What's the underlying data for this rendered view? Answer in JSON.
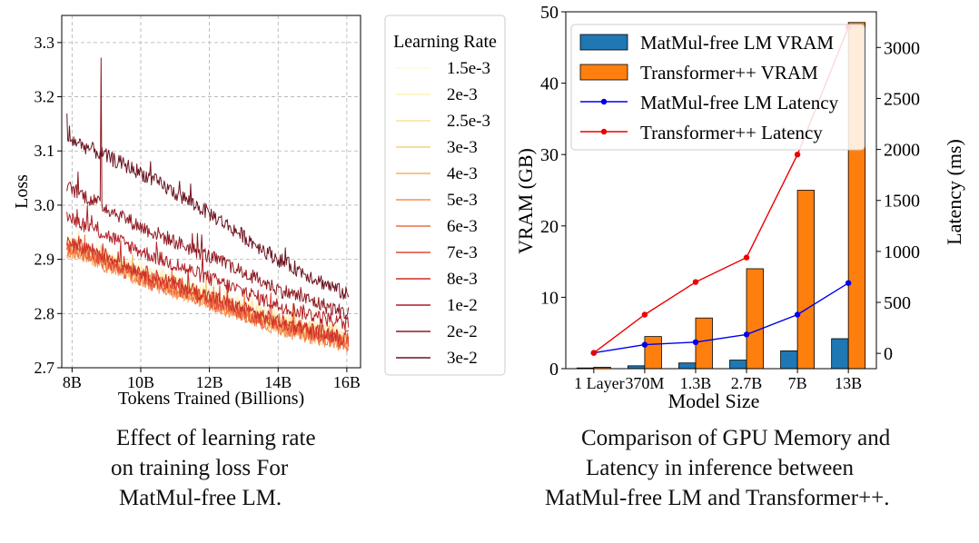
{
  "chart_data": [
    {
      "type": "line",
      "title": "",
      "xlabel": "Tokens Trained (Billions)",
      "ylabel": "Loss",
      "xlim": [
        7.7,
        16.4
      ],
      "ylim": [
        2.7,
        3.35
      ],
      "x_ticks": [
        8,
        10,
        12,
        14,
        16
      ],
      "x_tick_labels": [
        "8B",
        "10B",
        "12B",
        "14B",
        "16B"
      ],
      "y_ticks": [
        2.7,
        2.8,
        2.9,
        3.0,
        3.1,
        3.2,
        3.3
      ],
      "y_tick_labels": [
        "2.7",
        "2.8",
        "2.9",
        "3.0",
        "3.1",
        "3.2",
        "3.3"
      ],
      "grid": true,
      "legend_title": "Learning Rate",
      "legend_placement": "outside-right",
      "series": [
        {
          "name": "1.5e-3",
          "color": "#fff8dc",
          "x": [
            8,
            10,
            12,
            14,
            16
          ],
          "values": [
            2.935,
            2.885,
            2.84,
            2.795,
            2.765
          ]
        },
        {
          "name": "2e-3",
          "color": "#fdf0b8",
          "x": [
            8,
            10,
            12,
            14,
            16
          ],
          "values": [
            2.93,
            2.88,
            2.835,
            2.79,
            2.76
          ]
        },
        {
          "name": "2.5e-3",
          "color": "#fbe39a",
          "x": [
            8,
            10,
            12,
            14,
            16
          ],
          "values": [
            2.925,
            2.875,
            2.83,
            2.785,
            2.755
          ]
        },
        {
          "name": "3e-3",
          "color": "#f9cf7e",
          "x": [
            8,
            10,
            12,
            14,
            16
          ],
          "values": [
            2.92,
            2.87,
            2.825,
            2.78,
            2.75
          ]
        },
        {
          "name": "4e-3",
          "color": "#f7b265",
          "x": [
            8,
            10,
            12,
            14,
            16
          ],
          "values": [
            2.915,
            2.865,
            2.82,
            2.775,
            2.745
          ]
        },
        {
          "name": "5e-3",
          "color": "#f49151",
          "x": [
            8,
            10,
            12,
            14,
            16
          ],
          "values": [
            2.915,
            2.862,
            2.818,
            2.772,
            2.742
          ]
        },
        {
          "name": "6e-3",
          "color": "#ee6c44",
          "x": [
            8,
            10,
            12,
            14,
            16
          ],
          "values": [
            2.92,
            2.865,
            2.82,
            2.775,
            2.745
          ]
        },
        {
          "name": "7e-3",
          "color": "#e24a33",
          "x": [
            8,
            10,
            12,
            14,
            16
          ],
          "values": [
            2.925,
            2.87,
            2.825,
            2.78,
            2.75
          ]
        },
        {
          "name": "8e-3",
          "color": "#cc2f28",
          "x": [
            8,
            10,
            12,
            14,
            16
          ],
          "values": [
            2.935,
            2.878,
            2.832,
            2.785,
            2.755
          ]
        },
        {
          "name": "1e-2",
          "color": "#b01f25",
          "x": [
            8,
            10,
            12,
            14,
            16
          ],
          "values": [
            2.975,
            2.915,
            2.865,
            2.815,
            2.78
          ]
        },
        {
          "name": "2e-2",
          "color": "#8e1a22",
          "x": [
            8,
            10,
            12,
            14,
            16
          ],
          "values": [
            3.03,
            2.96,
            2.905,
            2.845,
            2.8
          ]
        },
        {
          "name": "3e-2",
          "color": "#6b1420",
          "x": [
            8,
            10,
            12,
            14,
            16
          ],
          "values": [
            3.12,
            3.06,
            2.985,
            2.9,
            2.835
          ]
        }
      ]
    },
    {
      "type": "bar",
      "title": "",
      "xlabel": "Model Size",
      "ylabel": "VRAM (GB)",
      "y2label": "Latency (ms)",
      "categories": [
        "1 Layer",
        "370M",
        "1.3B",
        "2.7B",
        "7B",
        "13B"
      ],
      "ylim": [
        0,
        50
      ],
      "y_ticks": [
        0,
        10,
        20,
        30,
        40,
        50
      ],
      "y2lim": [
        -150,
        3350
      ],
      "y2_ticks": [
        0,
        500,
        1000,
        1500,
        2000,
        2500,
        3000
      ],
      "grid": false,
      "legend_placement": "top-left",
      "series": [
        {
          "name": "MatMul-free LM VRAM",
          "type": "bar",
          "axis": "left",
          "color": "#1f77b4",
          "values": [
            0.1,
            0.4,
            0.8,
            1.2,
            2.5,
            4.2
          ]
        },
        {
          "name": "Transformer++ VRAM",
          "type": "bar",
          "axis": "left",
          "color": "#ff7f0e",
          "values": [
            0.2,
            4.5,
            7.1,
            14.0,
            25.0,
            48.5
          ]
        },
        {
          "name": "MatMul-free LM Latency",
          "type": "line",
          "axis": "right",
          "color": "#0000ee",
          "values": [
            5,
            85,
            110,
            185,
            380,
            690
          ]
        },
        {
          "name": "Transformer++ Latency",
          "type": "line",
          "axis": "right",
          "color": "#ee0000",
          "values": [
            5,
            380,
            700,
            940,
            1950,
            3200
          ]
        }
      ]
    }
  ],
  "captions": {
    "left": [
      "Effect of learning rate",
      "on training loss For",
      "MatMul-free LM."
    ],
    "right": [
      "Comparison of GPU Memory and",
      "Latency in inference between",
      "MatMul-free LM and Transformer++."
    ]
  }
}
